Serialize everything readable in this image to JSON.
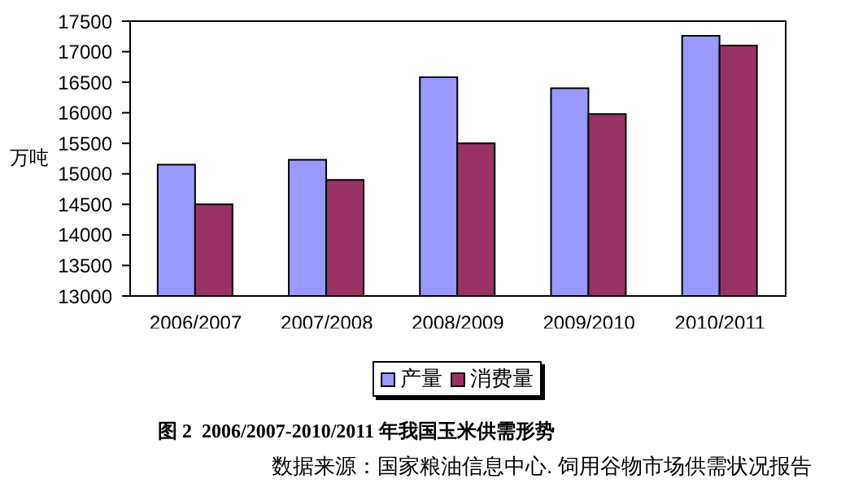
{
  "chart_data": {
    "type": "bar",
    "title": "图 2  2006/2007-2010/2011 年我国玉米供需形势",
    "ylabel": "万吨",
    "annotations": [
      "数据来源：国家粮油信息中心. 饲用谷物市场供需状况报告"
    ],
    "categories": [
      "2006/2007",
      "2007/2008",
      "2008/2009",
      "2009/2010",
      "2010/2011"
    ],
    "series": [
      {
        "name": "产量",
        "color": "#9999ff",
        "values": [
          15150,
          15230,
          16580,
          16400,
          17260
        ]
      },
      {
        "name": "消费量",
        "color": "#993366",
        "values": [
          14500,
          14900,
          15500,
          15980,
          17100
        ]
      }
    ],
    "ylim": [
      13000,
      17500
    ],
    "yticks": [
      13000,
      13500,
      14000,
      14500,
      15000,
      15500,
      16000,
      16500,
      17000,
      17500
    ],
    "legend": "bottom"
  }
}
